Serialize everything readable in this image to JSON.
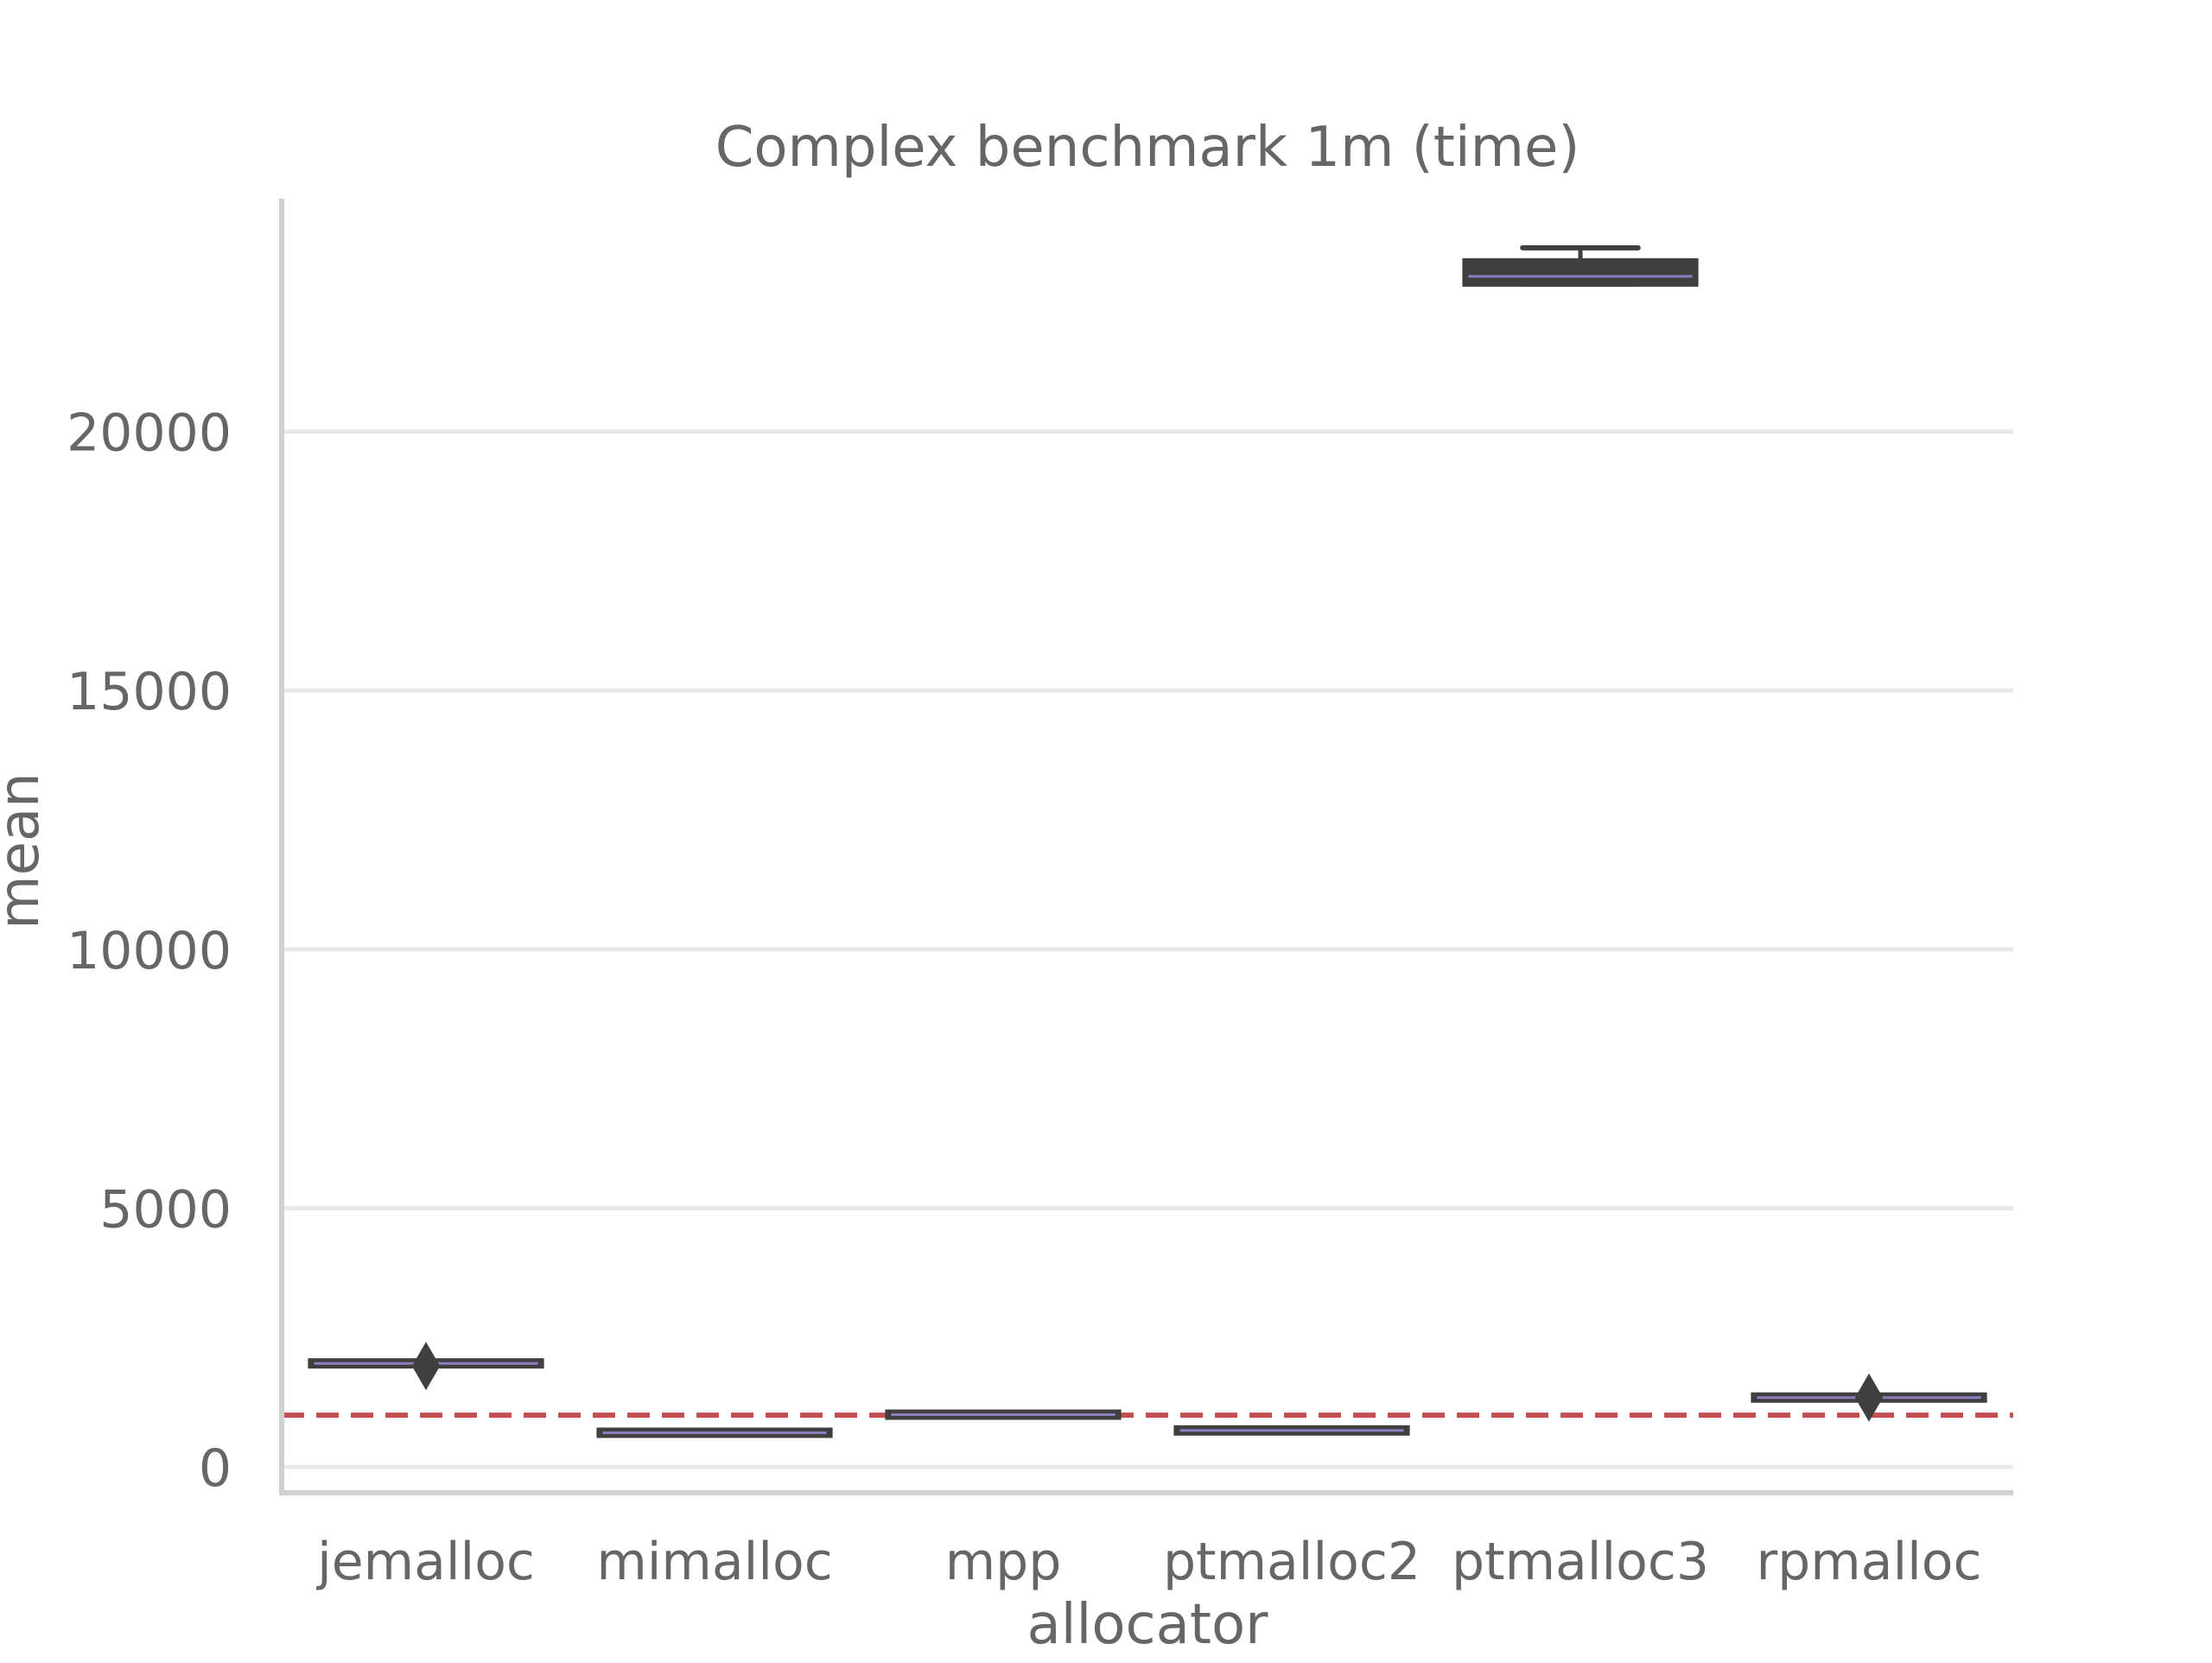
{
  "chart_data": {
    "type": "box",
    "title": "Complex benchmark 1m (time)",
    "xlabel": "allocator",
    "ylabel": "mean",
    "ylim": [
      -500,
      24500
    ],
    "yticks": [
      0,
      5000,
      10000,
      15000,
      20000
    ],
    "grid": "horizontal",
    "reference_line": {
      "y": 1000,
      "style": "dashed",
      "color": "#c44e52"
    },
    "colors": {
      "box_stroke": "#3f3f3f",
      "grid": "#e8e8e8",
      "axis": "#d0d0d0",
      "text": "#666666",
      "median_line": "#8e7cc3"
    },
    "categories": [
      "jemalloc",
      "mimalloc",
      "mpp",
      "ptmalloc2",
      "ptmalloc3",
      "rpmalloc"
    ],
    "boxes": [
      {
        "label": "jemalloc",
        "q1": 1975,
        "median": 2000,
        "q3": 2025,
        "whislo": 1970,
        "whishi": 2030,
        "fliers": [
          1950
        ]
      },
      {
        "label": "mimalloc",
        "q1": 650,
        "median": 660,
        "q3": 670,
        "whislo": 645,
        "whishi": 675,
        "fliers": []
      },
      {
        "label": "mpp",
        "q1": 1000,
        "median": 1010,
        "q3": 1020,
        "whislo": 995,
        "whishi": 1025,
        "fliers": []
      },
      {
        "label": "ptmalloc2",
        "q1": 690,
        "median": 705,
        "q3": 720,
        "whislo": 685,
        "whishi": 725,
        "fliers": []
      },
      {
        "label": "ptmalloc3",
        "q1": 22850,
        "median": 23000,
        "q3": 23300,
        "whislo": 22850,
        "whishi": 23550,
        "fliers": []
      },
      {
        "label": "rpmalloc",
        "q1": 1320,
        "median": 1340,
        "q3": 1360,
        "whislo": 1315,
        "whishi": 1365,
        "fliers": [
          1340
        ]
      }
    ]
  }
}
